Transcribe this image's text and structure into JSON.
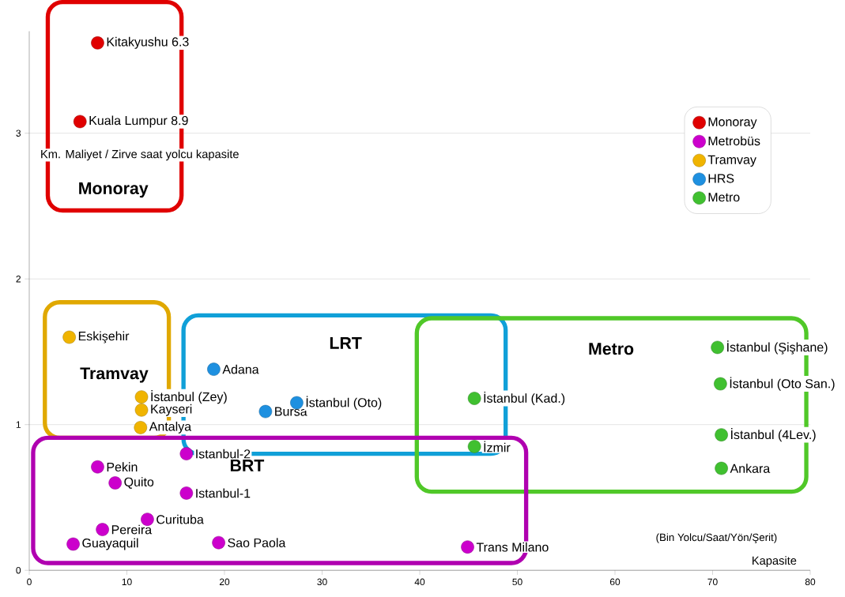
{
  "chart_data": {
    "type": "scatter",
    "ylabel": "Km. Maliyet / Zirve saat yolcu kapasite",
    "xlabel": "Kapasite",
    "xlim": [
      0,
      80
    ],
    "xticks": [
      0,
      10,
      20,
      30,
      40,
      50,
      60,
      70,
      80
    ],
    "ylim": [
      0,
      3.7
    ],
    "yticks": [
      0,
      1,
      2,
      3
    ],
    "grid": "y",
    "legend": "top right",
    "series": [
      {
        "name": "Monoray",
        "color": "#e00000",
        "x": [
          7.0,
          5.2
        ],
        "values": [
          3.62,
          3.08
        ]
      },
      {
        "name": "Metrobüs",
        "color": "#cc00cc",
        "x": [
          7.0,
          8.8,
          12.1,
          7.5,
          4.5,
          16.1,
          16.1,
          19.4,
          44.9
        ],
        "values": [
          0.71,
          0.6,
          0.35,
          0.28,
          0.18,
          0.53,
          0.8,
          0.19,
          0.16
        ]
      },
      {
        "name": "Tramvay",
        "color": "#f0b400",
        "x": [
          4.1,
          11.5,
          11.5,
          11.4
        ],
        "values": [
          1.6,
          1.19,
          1.1,
          0.98
        ]
      },
      {
        "name": "HRS",
        "color": "#1e90e0",
        "x": [
          18.9,
          24.2,
          27.4
        ],
        "values": [
          1.38,
          1.09,
          1.15
        ]
      },
      {
        "name": "Metro",
        "color": "#40c030",
        "x": [
          45.6,
          45.6,
          70.5,
          70.8,
          70.9,
          70.9
        ],
        "values": [
          1.18,
          0.85,
          1.53,
          1.28,
          0.93,
          0.7
        ]
      }
    ],
    "annotations": [
      {
        "text": "Kitakyushu 6.3",
        "x": 7.0,
        "y": 3.62
      },
      {
        "text": "Kuala Lumpur 8.9",
        "x": 5.2,
        "y": 3.08
      },
      {
        "text": "Pekin",
        "x": 7.0,
        "y": 0.71
      },
      {
        "text": "Quito",
        "x": 8.8,
        "y": 0.6
      },
      {
        "text": "Curituba",
        "x": 12.1,
        "y": 0.35
      },
      {
        "text": "Pereira",
        "x": 7.5,
        "y": 0.28
      },
      {
        "text": "Guayaquil",
        "x": 4.5,
        "y": 0.18
      },
      {
        "text": "Istanbul-1",
        "x": 16.1,
        "y": 0.53
      },
      {
        "text": "Istanbul-2",
        "x": 16.1,
        "y": 0.8
      },
      {
        "text": "Sao Paola",
        "x": 19.4,
        "y": 0.19
      },
      {
        "text": "Trans Milano",
        "x": 44.9,
        "y": 0.16
      },
      {
        "text": "Eskişehir",
        "x": 4.1,
        "y": 1.6
      },
      {
        "text": "İstanbul (Zey)",
        "x": 11.5,
        "y": 1.19
      },
      {
        "text": "Kayseri",
        "x": 11.5,
        "y": 1.1
      },
      {
        "text": "Antalya",
        "x": 11.4,
        "y": 0.98
      },
      {
        "text": "Adana",
        "x": 18.9,
        "y": 1.38
      },
      {
        "text": "Bursa",
        "x": 24.2,
        "y": 1.09
      },
      {
        "text": "İstanbul (Oto)",
        "x": 27.4,
        "y": 1.15
      },
      {
        "text": "İstanbul (Kad.)",
        "x": 45.6,
        "y": 1.18
      },
      {
        "text": "İzmir",
        "x": 45.6,
        "y": 0.85
      },
      {
        "text": "İstanbul (Şişhane)",
        "x": 70.5,
        "y": 1.53
      },
      {
        "text": "İstanbul (Oto San.)",
        "x": 70.8,
        "y": 1.28
      },
      {
        "text": "İstanbul (4Lev.)",
        "x": 70.9,
        "y": 0.93
      },
      {
        "text": "Ankara",
        "x": 70.9,
        "y": 0.7
      },
      "Monoray",
      "Tramvay",
      "LRT",
      "Metro",
      "BRT",
      "(Bin Yolcu/Saat/Yön/Şerit)"
    ]
  }
}
